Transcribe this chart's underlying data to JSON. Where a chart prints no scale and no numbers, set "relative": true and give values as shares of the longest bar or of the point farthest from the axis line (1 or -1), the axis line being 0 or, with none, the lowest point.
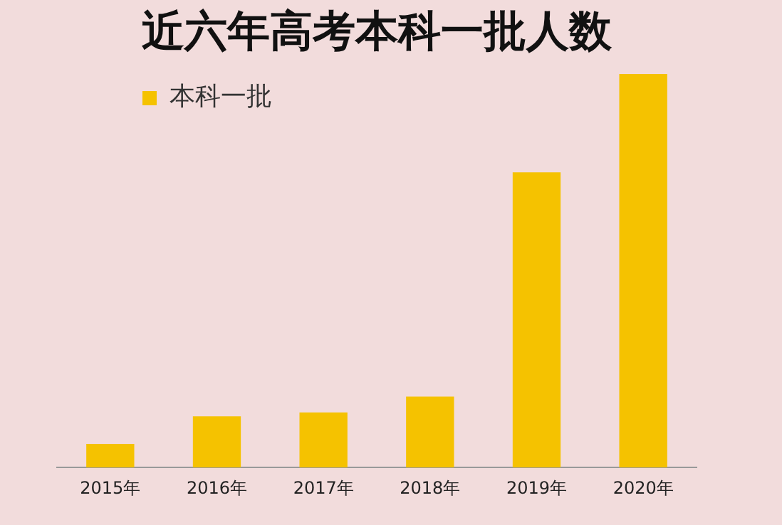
{
  "chart_data": {
    "type": "bar",
    "title": "近六年高考本科一批人数",
    "relative": true,
    "categories": [
      "2015年",
      "2016年",
      "2017年",
      "2018年",
      "2019年",
      "2020年"
    ],
    "series": [
      {
        "name": "本科一批",
        "color": "#f5c200",
        "values": [
          0.06,
          0.13,
          0.14,
          0.18,
          0.75,
          1
        ]
      }
    ],
    "grid": false,
    "legend": "top left"
  }
}
